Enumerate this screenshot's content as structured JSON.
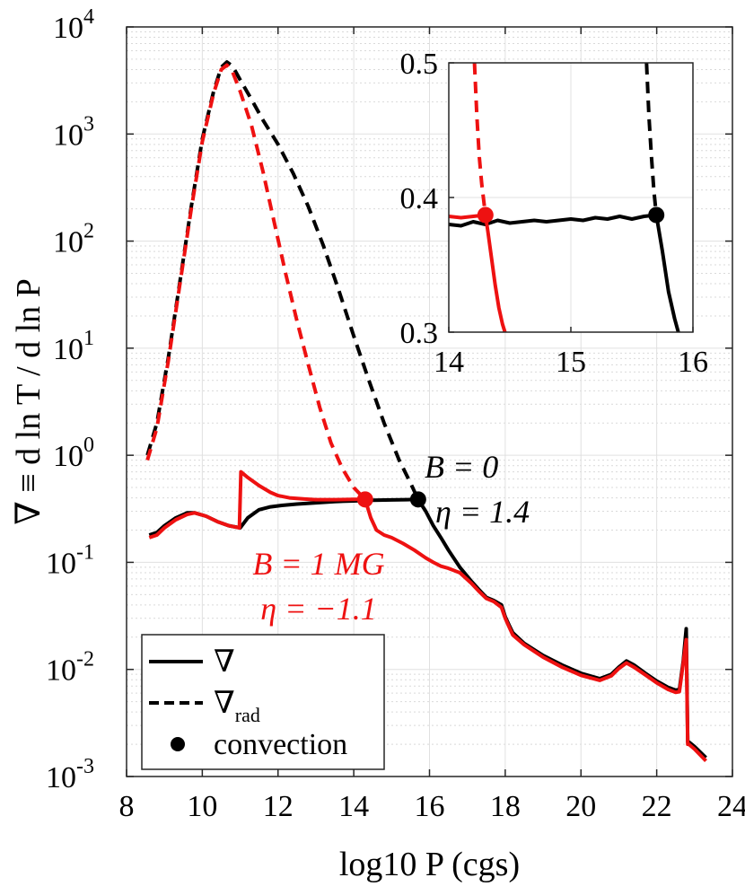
{
  "chart_data": {
    "type": "line",
    "xlabel": "log10 P (cgs)",
    "ylabel": "∇ ≡ d ln T / d ln P",
    "xlim": [
      8,
      24
    ],
    "ylim": [
      0.001,
      10000
    ],
    "yscale": "log",
    "grid": true,
    "x_ticks": [
      "8",
      "10",
      "12",
      "14",
      "16",
      "18",
      "20",
      "22",
      "24"
    ],
    "y_ticks": [
      {
        "base": "10",
        "exp": "-3"
      },
      {
        "base": "10",
        "exp": "-2"
      },
      {
        "base": "10",
        "exp": "-1"
      },
      {
        "base": "10",
        "exp": "0"
      },
      {
        "base": "10",
        "exp": "1"
      },
      {
        "base": "10",
        "exp": "2"
      },
      {
        "base": "10",
        "exp": "3"
      },
      {
        "base": "10",
        "exp": "4"
      }
    ],
    "colors": {
      "b0": "#000000",
      "b1": "#ee1111"
    },
    "series": [
      {
        "name": "∇ (B = 0)",
        "color": "b0",
        "style": "solid",
        "x": [
          8.6,
          8.8,
          9.0,
          9.3,
          9.6,
          9.8,
          10.1,
          10.4,
          10.7,
          11.0,
          11.2,
          11.5,
          11.8,
          12.1,
          12.5,
          13.0,
          13.5,
          14.0,
          14.5,
          15.0,
          15.4,
          15.7,
          15.9,
          16.1,
          16.3,
          16.5,
          16.8,
          17.1,
          17.3,
          17.5,
          17.7,
          17.9,
          18.0,
          18.1,
          18.2,
          18.5,
          19.0,
          19.5,
          20.0,
          20.5,
          20.8,
          21.0,
          21.2,
          21.4,
          21.7,
          22.0,
          22.3,
          22.5,
          22.6,
          22.7,
          22.78,
          22.82,
          22.85,
          23.0,
          23.3
        ],
        "y": [
          0.18,
          0.19,
          0.22,
          0.26,
          0.29,
          0.29,
          0.27,
          0.24,
          0.22,
          0.21,
          0.26,
          0.31,
          0.33,
          0.34,
          0.35,
          0.36,
          0.37,
          0.375,
          0.38,
          0.383,
          0.385,
          0.387,
          0.3,
          0.22,
          0.17,
          0.13,
          0.09,
          0.067,
          0.056,
          0.047,
          0.044,
          0.04,
          0.031,
          0.026,
          0.022,
          0.0175,
          0.0135,
          0.011,
          0.0092,
          0.0082,
          0.009,
          0.0105,
          0.012,
          0.011,
          0.0092,
          0.0078,
          0.0068,
          0.0064,
          0.0065,
          0.012,
          0.024,
          0.0021,
          0.0021,
          0.0019,
          0.0015
        ]
      },
      {
        "name": "∇rad (B = 0)",
        "color": "b0",
        "style": "dashed",
        "x": [
          8.55,
          8.8,
          9.1,
          9.4,
          9.7,
          10.0,
          10.3,
          10.5,
          10.65,
          10.8,
          11.0,
          11.3,
          11.6,
          12.0,
          12.4,
          12.8,
          13.2,
          13.6,
          14.0,
          14.4,
          14.8,
          15.2,
          15.5,
          15.7
        ],
        "y": [
          1.0,
          2.0,
          8,
          40,
          200,
          900,
          2500,
          4200,
          4700,
          4300,
          3200,
          2100,
          1350,
          800,
          430,
          210,
          90,
          35,
          13,
          5,
          2.0,
          0.9,
          0.55,
          0.387
        ]
      },
      {
        "name": "∇ (B = 1 MG)",
        "color": "b1",
        "style": "solid",
        "x": [
          8.6,
          8.8,
          9.0,
          9.3,
          9.6,
          9.8,
          10.1,
          10.4,
          10.7,
          10.98,
          11.02,
          11.2,
          11.5,
          11.8,
          12.0,
          12.3,
          12.7,
          13.0,
          13.5,
          14.0,
          14.3,
          14.45,
          14.6,
          14.8,
          15.0,
          15.3,
          15.6,
          15.9,
          16.1,
          16.3,
          16.5,
          16.8,
          17.1,
          17.3,
          17.5,
          17.7,
          17.9,
          18.0,
          18.1,
          18.2,
          18.5,
          19.0,
          19.5,
          20.0,
          20.5,
          20.8,
          21.0,
          21.2,
          21.4,
          21.7,
          22.0,
          22.3,
          22.5,
          22.6,
          22.7,
          22.78,
          22.82,
          22.85,
          23.0,
          23.3
        ],
        "y": [
          0.17,
          0.18,
          0.21,
          0.25,
          0.28,
          0.29,
          0.27,
          0.24,
          0.22,
          0.21,
          0.7,
          0.62,
          0.52,
          0.45,
          0.42,
          0.4,
          0.39,
          0.385,
          0.385,
          0.387,
          0.387,
          0.26,
          0.2,
          0.18,
          0.17,
          0.15,
          0.13,
          0.11,
          0.1,
          0.092,
          0.088,
          0.08,
          0.064,
          0.054,
          0.046,
          0.043,
          0.038,
          0.03,
          0.025,
          0.021,
          0.017,
          0.013,
          0.0105,
          0.0088,
          0.0079,
          0.0087,
          0.0102,
          0.0115,
          0.0105,
          0.0089,
          0.0075,
          0.0065,
          0.0061,
          0.0062,
          0.0115,
          0.019,
          0.002,
          0.002,
          0.0018,
          0.0014
        ]
      },
      {
        "name": "∇rad (B = 1 MG)",
        "color": "b1",
        "style": "dashed",
        "x": [
          8.55,
          8.8,
          9.1,
          9.4,
          9.7,
          10.0,
          10.3,
          10.5,
          10.65,
          10.8,
          11.0,
          11.3,
          11.6,
          11.9,
          12.2,
          12.5,
          12.8,
          13.1,
          13.4,
          13.7,
          14.0,
          14.3
        ],
        "y": [
          0.9,
          1.8,
          7.5,
          38,
          190,
          850,
          2400,
          4000,
          4400,
          3800,
          2500,
          1200,
          450,
          150,
          50,
          18,
          7,
          2.8,
          1.3,
          0.75,
          0.5,
          0.387
        ]
      }
    ],
    "convection_points": [
      {
        "x": 15.7,
        "y": 0.387,
        "color": "b0"
      },
      {
        "x": 14.3,
        "y": 0.387,
        "color": "b1"
      }
    ],
    "annotations": [
      {
        "lines": [
          "B = 0",
          "η = 1.4"
        ],
        "color": "b0"
      },
      {
        "lines": [
          "B = 1 MG",
          "η = −1.1"
        ],
        "color": "b1"
      }
    ],
    "legend": {
      "position": "bottom-left",
      "entries": [
        {
          "label": "∇",
          "sub": "",
          "style": "solid"
        },
        {
          "label": "∇",
          "sub": "rad",
          "style": "dashed"
        },
        {
          "label": "convection",
          "sub": "",
          "style": "dot"
        }
      ]
    },
    "inset": {
      "xlim": [
        14,
        16
      ],
      "ylim": [
        0.3,
        0.5
      ],
      "x_ticks": [
        "14",
        "15",
        "16"
      ],
      "y_ticks": [
        "0.3",
        "0.4",
        "0.5"
      ],
      "series": [
        {
          "color": "b0",
          "style": "solid",
          "x": [
            14.0,
            14.1,
            14.2,
            14.3,
            14.4,
            14.5,
            14.6,
            14.7,
            14.8,
            14.9,
            15.0,
            15.1,
            15.2,
            15.3,
            15.4,
            15.5,
            15.6,
            15.7,
            15.75,
            15.8,
            15.85,
            15.88
          ],
          "y": [
            0.38,
            0.379,
            0.382,
            0.38,
            0.383,
            0.381,
            0.382,
            0.383,
            0.382,
            0.383,
            0.384,
            0.383,
            0.385,
            0.384,
            0.386,
            0.384,
            0.386,
            0.387,
            0.36,
            0.33,
            0.31,
            0.3
          ]
        },
        {
          "color": "b0",
          "style": "dashed",
          "x": [
            15.62,
            15.64,
            15.66,
            15.68,
            15.7
          ],
          "y": [
            0.5,
            0.46,
            0.43,
            0.405,
            0.387
          ]
        },
        {
          "color": "b1",
          "style": "solid",
          "x": [
            14.0,
            14.1,
            14.2,
            14.3,
            14.32,
            14.35,
            14.38,
            14.41,
            14.44,
            14.46
          ],
          "y": [
            0.386,
            0.385,
            0.386,
            0.387,
            0.375,
            0.355,
            0.335,
            0.318,
            0.306,
            0.3
          ]
        },
        {
          "color": "b1",
          "style": "dashed",
          "x": [
            14.21,
            14.23,
            14.25,
            14.27,
            14.29,
            14.3
          ],
          "y": [
            0.5,
            0.46,
            0.43,
            0.41,
            0.395,
            0.387
          ]
        }
      ],
      "points": [
        {
          "x": 15.7,
          "y": 0.387,
          "color": "b0"
        },
        {
          "x": 14.3,
          "y": 0.387,
          "color": "b1"
        }
      ]
    }
  }
}
